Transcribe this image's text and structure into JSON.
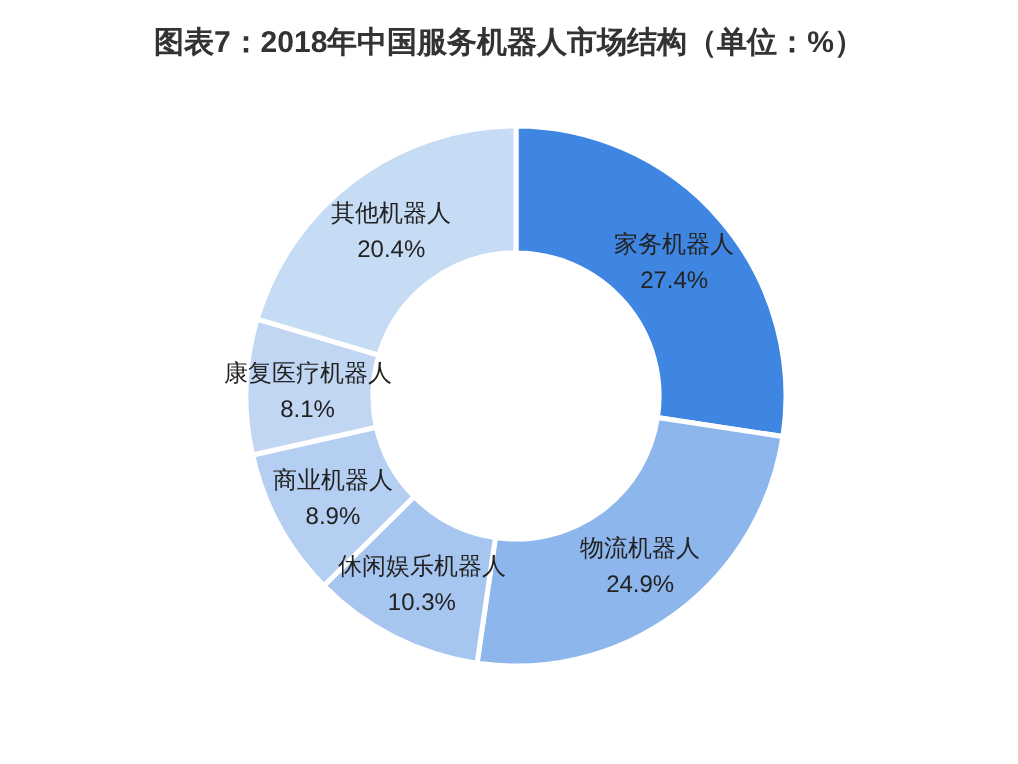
{
  "chart_data": {
    "type": "donut",
    "title": "图表7：2018年中国服务机器人市场结构（单位：%）",
    "categories": [
      "家务机器人",
      "物流机器人",
      "休闲娱乐机器人",
      "商业机器人",
      "康复医疗机器人",
      "其他机器人"
    ],
    "values": [
      27.4,
      24.9,
      10.3,
      8.9,
      8.1,
      20.4
    ],
    "value_labels": [
      "27.4%",
      "24.9%",
      "10.3%",
      "8.9%",
      "8.1%",
      "20.4%"
    ],
    "colors": [
      "#3f86e2",
      "#8db6ec",
      "#a6c6f0",
      "#b4cff2",
      "#c0d6f3",
      "#c6dbf4"
    ]
  }
}
